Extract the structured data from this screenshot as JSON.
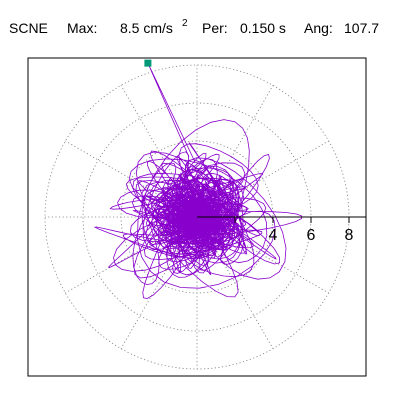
{
  "header": {
    "station": "SCNE",
    "max_label": "Max:",
    "max_value": "8.5 cm/s",
    "max_exp": "2",
    "per_label": "Per:",
    "per_value": "0.150 s",
    "ang_label": "Ang:",
    "ang_value": "107.7"
  },
  "chart_data": {
    "type": "scatter",
    "title": "",
    "xlabel": "",
    "ylabel": "",
    "polar": true,
    "radial_ticks": [
      2,
      4,
      6,
      8
    ],
    "radial_tick_labels": [
      "4",
      "6",
      "8"
    ],
    "rlim": [
      0,
      10
    ],
    "grid": true,
    "max_amplitude": 8.5,
    "max_angle_deg": 107.7,
    "series": [
      {
        "values": [
          8.5
        ],
        "angles_deg": [
          107.7
        ],
        "marker": "square"
      }
    ],
    "colors": {
      "orbit": "#8800cc",
      "marker": "#009977"
    }
  }
}
